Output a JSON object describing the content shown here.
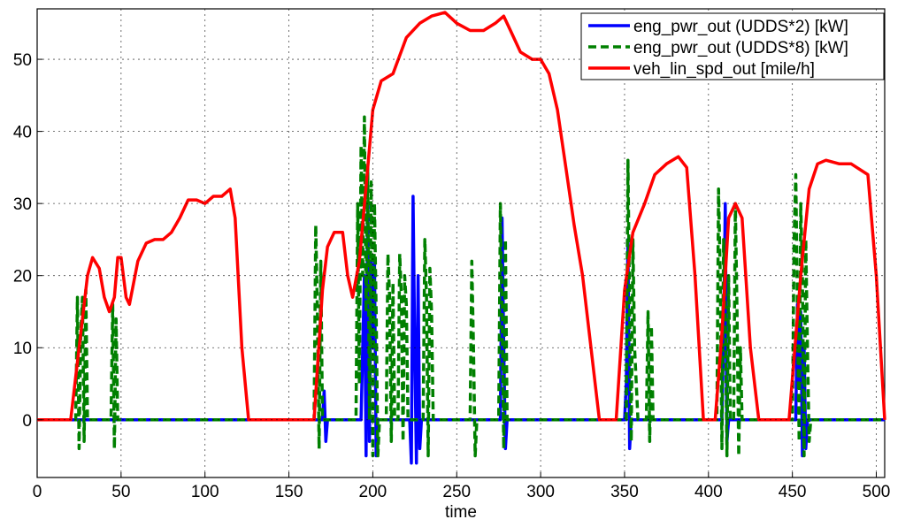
{
  "chart_data": {
    "type": "line",
    "xlabel": "time",
    "xlim": [
      0,
      505
    ],
    "ylim": [
      -8,
      57
    ],
    "xticks": [
      0,
      50,
      100,
      150,
      200,
      250,
      300,
      350,
      400,
      450,
      500
    ],
    "yticks": [
      0,
      10,
      20,
      30,
      40,
      50
    ],
    "grid": true,
    "legend": "upper right",
    "series": [
      {
        "name": "eng_pwr_out (UDDS*2) [kW]",
        "color": "#0000ff",
        "dash": false,
        "x": [
          0,
          170,
          171,
          172,
          173,
          193,
          194,
          195,
          196,
          197,
          198,
          199,
          200,
          201,
          202,
          203,
          222,
          223,
          224,
          225,
          226,
          227,
          228,
          229,
          276,
          277,
          278,
          279,
          280,
          350,
          351,
          352,
          353,
          354,
          408,
          409,
          410,
          411,
          412,
          452,
          453,
          454,
          455,
          456,
          457,
          458,
          459,
          505
        ],
        "values": [
          0,
          0,
          4,
          -3,
          0,
          0,
          10,
          20,
          -5,
          30,
          -3,
          22,
          10,
          22,
          -5,
          0,
          0,
          -6,
          31,
          10,
          -6,
          20,
          -4,
          0,
          0,
          28,
          10,
          -4,
          0,
          0,
          5,
          25,
          -4,
          0,
          0,
          12,
          30,
          -3,
          0,
          0,
          16,
          5,
          15,
          -5,
          10,
          -4,
          0,
          0
        ]
      },
      {
        "name": "eng_pwr_out (UDDS*8) [kW]",
        "color": "#008000",
        "dash": true,
        "x": [
          0,
          23,
          24,
          25,
          26,
          27,
          28,
          29,
          30,
          44,
          45,
          46,
          47,
          48,
          165,
          166,
          167,
          168,
          169,
          170,
          190,
          191,
          192,
          193,
          194,
          195,
          196,
          197,
          198,
          199,
          200,
          201,
          202,
          203,
          204,
          208,
          209,
          210,
          211,
          212,
          213,
          215,
          216,
          217,
          218,
          219,
          220,
          221,
          230,
          231,
          232,
          233,
          234,
          235,
          236,
          258,
          259,
          260,
          261,
          262,
          275,
          276,
          277,
          278,
          279,
          280,
          351,
          352,
          353,
          354,
          355,
          356,
          358,
          363,
          364,
          365,
          366,
          367,
          405,
          406,
          407,
          408,
          409,
          410,
          411,
          412,
          413,
          415,
          416,
          417,
          418,
          419,
          420,
          450,
          451,
          452,
          453,
          454,
          455,
          456,
          457,
          458,
          459,
          460,
          461,
          505
        ],
        "values": [
          0,
          0,
          17,
          -4,
          12,
          17,
          -3,
          18,
          0,
          0,
          16,
          -4,
          14,
          0,
          0,
          27,
          15,
          -4,
          22,
          0,
          0,
          30,
          5,
          38,
          20,
          42,
          15,
          35,
          0,
          33,
          -5,
          30,
          15,
          -5,
          0,
          0,
          23,
          17,
          -3,
          19,
          0,
          0,
          23,
          17,
          -3,
          20,
          16,
          0,
          0,
          25,
          17,
          -5,
          21,
          15,
          0,
          0,
          22,
          10,
          -5,
          0,
          0,
          30,
          15,
          -4,
          25,
          0,
          0,
          36,
          15,
          -3,
          25,
          10,
          0,
          0,
          15,
          -3,
          13,
          0,
          0,
          32,
          20,
          -4,
          25,
          15,
          -5,
          20,
          0,
          0,
          30,
          15,
          -5,
          10,
          0,
          0,
          25,
          34,
          15,
          -3,
          30,
          20,
          -5,
          25,
          10,
          -3,
          0,
          0
        ]
      },
      {
        "name": "veh_lin_spd_out [mile/h]",
        "color": "#ff0000",
        "dash": false,
        "x": [
          0,
          20,
          25,
          30,
          33,
          37,
          40,
          43,
          46,
          48,
          50,
          53,
          55,
          60,
          65,
          70,
          75,
          80,
          85,
          90,
          95,
          100,
          105,
          110,
          115,
          118,
          122,
          126,
          165,
          170,
          173,
          177,
          182,
          185,
          188,
          192,
          197,
          200,
          205,
          212,
          220,
          228,
          235,
          243,
          250,
          258,
          266,
          273,
          278,
          282,
          288,
          295,
          300,
          305,
          310,
          315,
          320,
          325,
          330,
          335,
          345,
          350,
          355,
          362,
          368,
          375,
          382,
          387,
          392,
          397,
          404,
          408,
          412,
          416,
          420,
          425,
          430,
          448,
          455,
          460,
          465,
          470,
          478,
          485,
          495,
          500,
          505
        ],
        "values": [
          0,
          0,
          10,
          20,
          22.5,
          21,
          17,
          15,
          17,
          22.5,
          22.5,
          17,
          16,
          22,
          24.5,
          25,
          25,
          26,
          28,
          30.5,
          30.5,
          30,
          31,
          31,
          32,
          28,
          10,
          0,
          0,
          18,
          24,
          26,
          26,
          20,
          17,
          22,
          35,
          43,
          47,
          48,
          53,
          55,
          56,
          56.5,
          55,
          54,
          54,
          55,
          56,
          54,
          51,
          50,
          50,
          48,
          43,
          35,
          27,
          20,
          10,
          0,
          0,
          18,
          26,
          30,
          34,
          35.5,
          36.5,
          35,
          20,
          0,
          0,
          12,
          28,
          30,
          28,
          10,
          0,
          0,
          20,
          32,
          35.5,
          36,
          35.5,
          35.5,
          34,
          20,
          0
        ]
      }
    ]
  }
}
